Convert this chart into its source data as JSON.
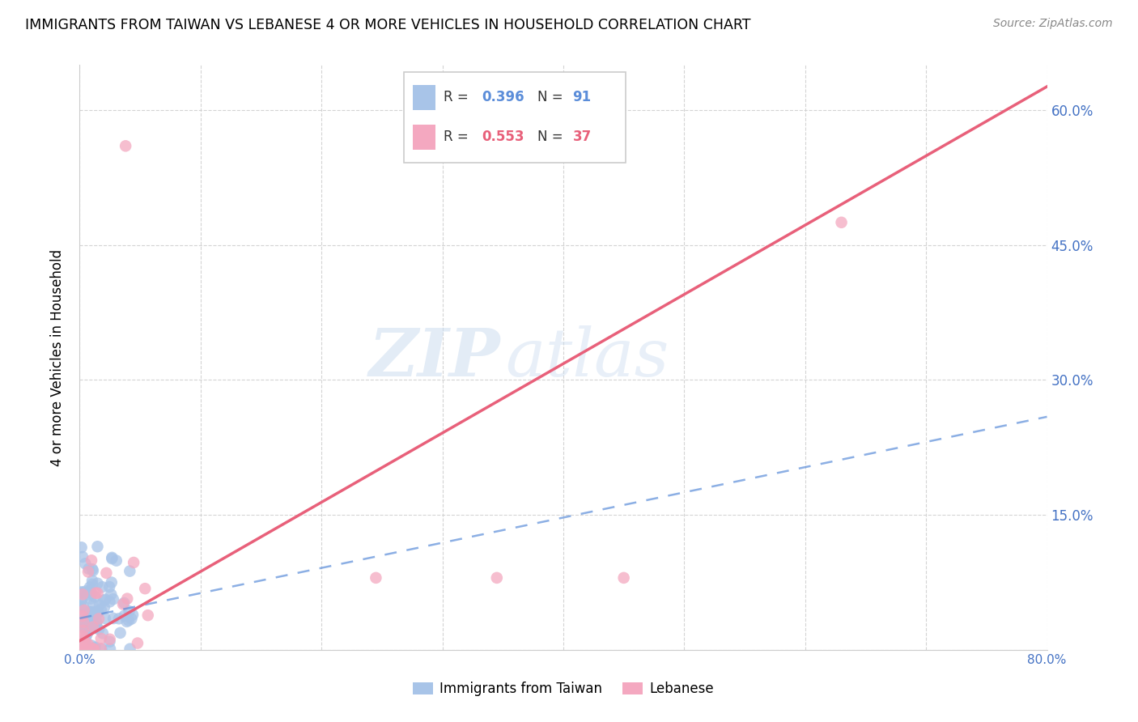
{
  "title": "IMMIGRANTS FROM TAIWAN VS LEBANESE 4 OR MORE VEHICLES IN HOUSEHOLD CORRELATION CHART",
  "source": "Source: ZipAtlas.com",
  "ylabel": "4 or more Vehicles in Household",
  "watermark_zip": "ZIP",
  "watermark_atlas": "atlas",
  "xlim": [
    0.0,
    0.8
  ],
  "ylim": [
    0.0,
    0.65
  ],
  "taiwan_color": "#a8c4e8",
  "lebanese_color": "#f4a8c0",
  "taiwan_r": 0.396,
  "taiwan_n": 91,
  "lebanese_r": 0.553,
  "lebanese_n": 37,
  "taiwan_line_color": "#5b8dd9",
  "lebanese_line_color": "#e8607a",
  "grid_color": "#d0d0d0",
  "right_axis_color": "#4472c4",
  "background_color": "#ffffff",
  "taiwan_line_slope": 0.28,
  "taiwan_line_intercept": 0.035,
  "lebanese_line_slope": 0.77,
  "lebanese_line_intercept": 0.01
}
